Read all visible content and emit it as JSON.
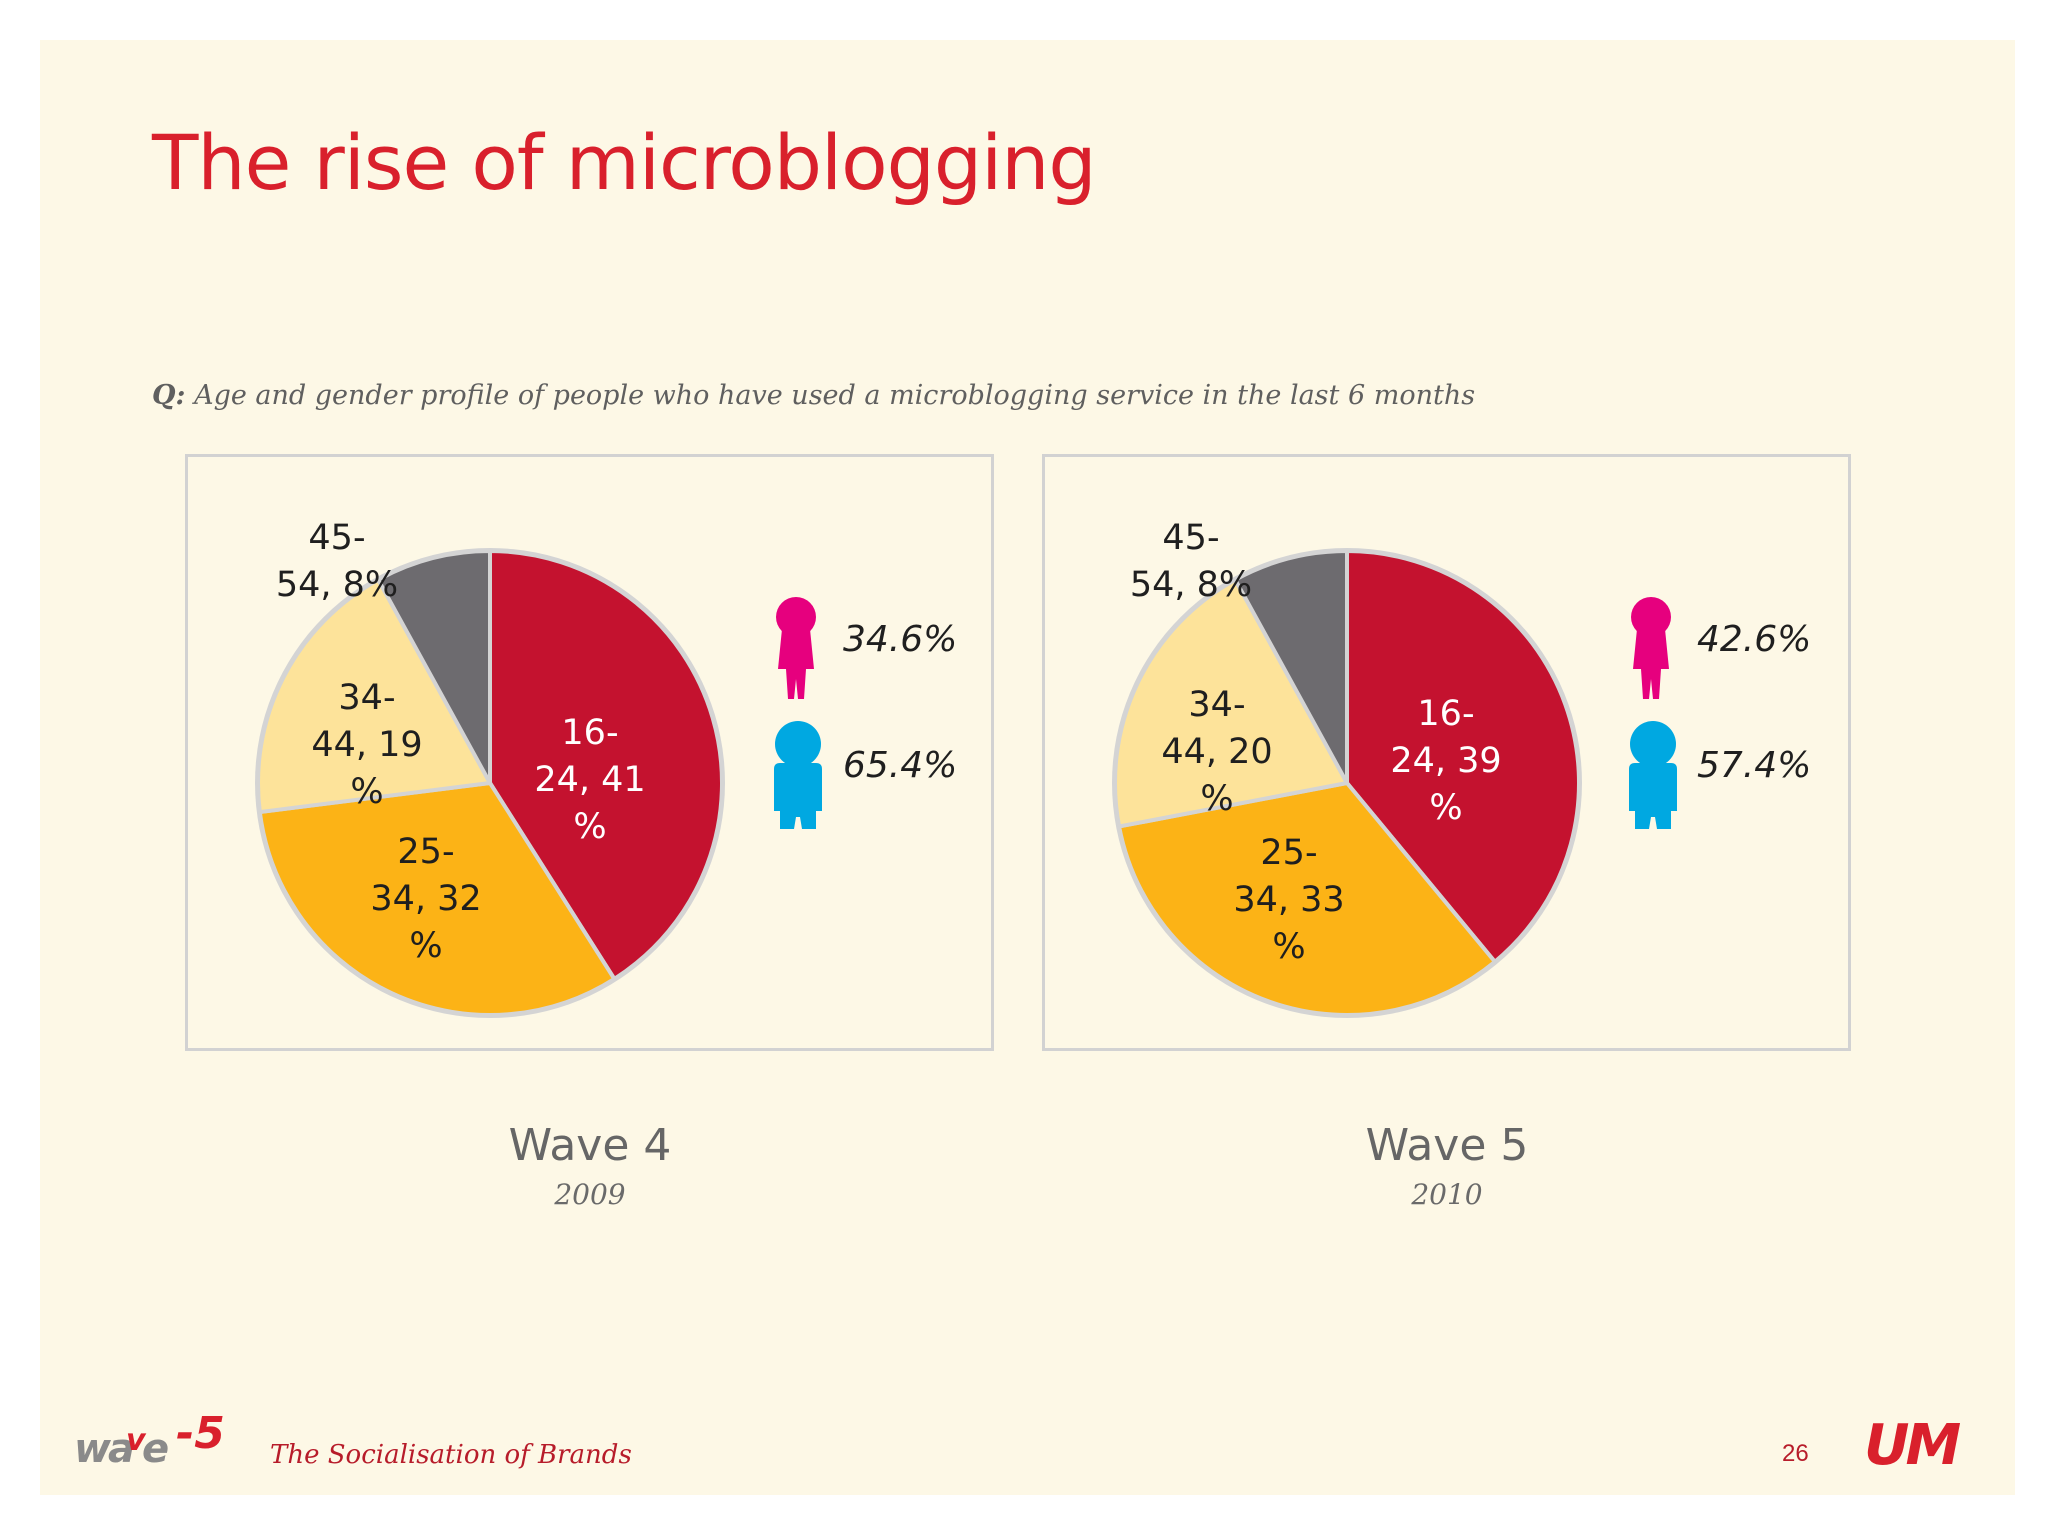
{
  "title": "The rise of microblogging",
  "question": {
    "prefix": "Q:",
    "text": " Age and gender profile of people who have used a microblogging service in the last 6 months"
  },
  "colors": {
    "seg_16_24": "#c4122f",
    "seg_25_34": "#fcb316",
    "seg_34_44": "#fde39a",
    "seg_45_54": "#6d6b6f",
    "female": "#e6007e",
    "male": "#00a8e1",
    "title": "#d9202c"
  },
  "chart_data": [
    {
      "type": "pie",
      "title": "Wave 4",
      "subtitle": "2009",
      "categories": [
        "16-24",
        "25-34",
        "34-44",
        "45-54"
      ],
      "values": [
        41,
        32,
        19,
        8
      ],
      "data_labels": [
        {
          "line1": "16-",
          "line2": "24, 41",
          "line3": "%"
        },
        {
          "line1": "25-",
          "line2": "34, 32",
          "line3": "%"
        },
        {
          "line1": "34-",
          "line2": "44, 19",
          "line3": "%"
        },
        {
          "line1": "45-",
          "line2": "54, 8%",
          "line3": ""
        }
      ],
      "gender": {
        "female_pct": 34.6,
        "male_pct": 65.4,
        "female_label": "34.6%",
        "male_label": "65.4%"
      }
    },
    {
      "type": "pie",
      "title": "Wave 5",
      "subtitle": "2010",
      "categories": [
        "16-24",
        "25-34",
        "34-44",
        "45-54"
      ],
      "values": [
        39,
        33,
        20,
        8
      ],
      "data_labels": [
        {
          "line1": "16-",
          "line2": "24, 39",
          "line3": "%"
        },
        {
          "line1": "25-",
          "line2": "34, 33",
          "line3": "%"
        },
        {
          "line1": "34-",
          "line2": "44, 20",
          "line3": "%"
        },
        {
          "line1": "45-",
          "line2": "54, 8%",
          "line3": ""
        }
      ],
      "gender": {
        "female_pct": 42.6,
        "male_pct": 57.4,
        "female_label": "42.6%",
        "male_label": "57.4%"
      }
    }
  ],
  "footer": {
    "logo_text": "wave5",
    "brand": "The Socialisation of Brands",
    "page": "26",
    "agency": "UM"
  }
}
